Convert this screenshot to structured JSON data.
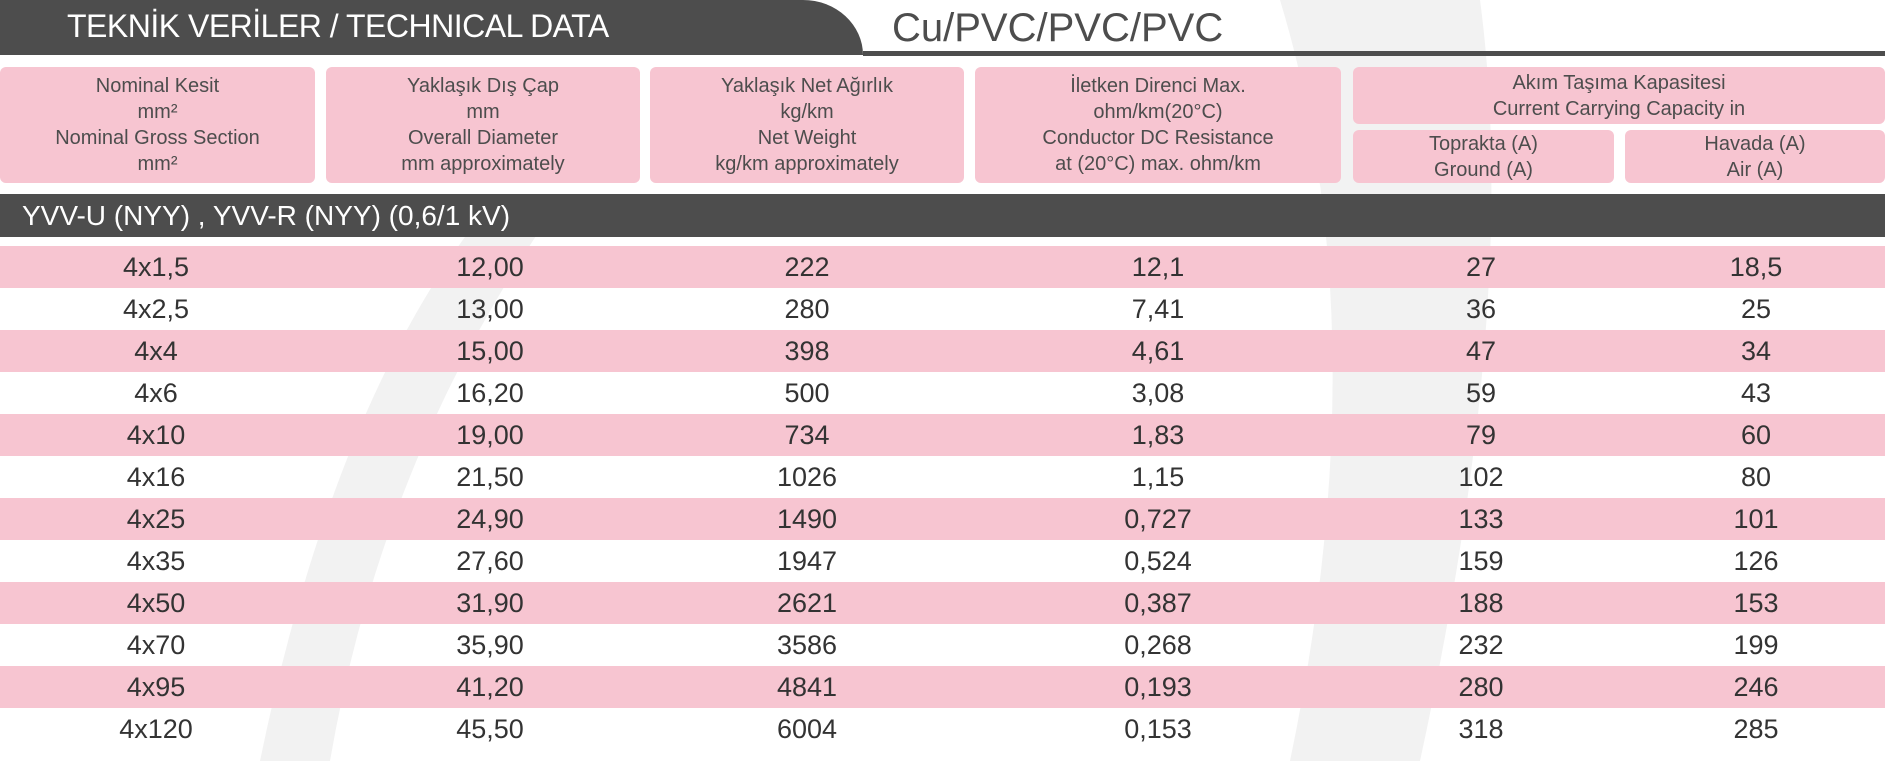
{
  "header": {
    "title": "TEKNİK  VERİLER /  TECHNICAL DATA",
    "material": "Cu/PVC/PVC/PVC"
  },
  "table": {
    "columns": [
      [
        "Nominal Kesit",
        "mm²",
        "Nominal Gross Section",
        "mm²"
      ],
      [
        "Yaklaşık Dış Çap",
        "mm",
        "Overall Diameter",
        "mm approximately"
      ],
      [
        "Yaklaşık Net  Ağırlık",
        "kg/km",
        "Net Weight",
        "kg/km approximately"
      ],
      [
        "İletken Direnci Max.",
        "ohm/km(20°C)",
        "Conductor DC Resistance",
        "at (20°C) max. ohm/km"
      ]
    ],
    "group": {
      "lines": [
        "Akım Taşıma Kapasitesi",
        "Current Carrying Capacity in"
      ],
      "sub": [
        [
          "Toprakta (A)",
          "Ground (A)"
        ],
        [
          "Havada (A)",
          "Air (A)"
        ]
      ]
    },
    "section": "YVV-U (NYY) , YVV-R (NYY) (0,6/1 kV)",
    "rows": [
      [
        "4x1,5",
        "12,00",
        "222",
        "12,1",
        "27",
        "18,5"
      ],
      [
        "4x2,5",
        "13,00",
        "280",
        "7,41",
        "36",
        "25"
      ],
      [
        "4x4",
        "15,00",
        "398",
        "4,61",
        "47",
        "34"
      ],
      [
        "4x6",
        "16,20",
        "500",
        "3,08",
        "59",
        "43"
      ],
      [
        "4x10",
        "19,00",
        "734",
        "1,83",
        "79",
        "60"
      ],
      [
        "4x16",
        "21,50",
        "1026",
        "1,15",
        "102",
        "80"
      ],
      [
        "4x25",
        "24,90",
        "1490",
        "0,727",
        "133",
        "101"
      ],
      [
        "4x35",
        "27,60",
        "1947",
        "0,524",
        "159",
        "126"
      ],
      [
        "4x50",
        "31,90",
        "2621",
        "0,387",
        "188",
        "153"
      ],
      [
        "4x70",
        "35,90",
        "3586",
        "0,268",
        "232",
        "199"
      ],
      [
        "4x95",
        "41,20",
        "4841",
        "0,193",
        "280",
        "246"
      ],
      [
        "4x120",
        "45,50",
        "6004",
        "0,153",
        "318",
        "285"
      ]
    ]
  }
}
